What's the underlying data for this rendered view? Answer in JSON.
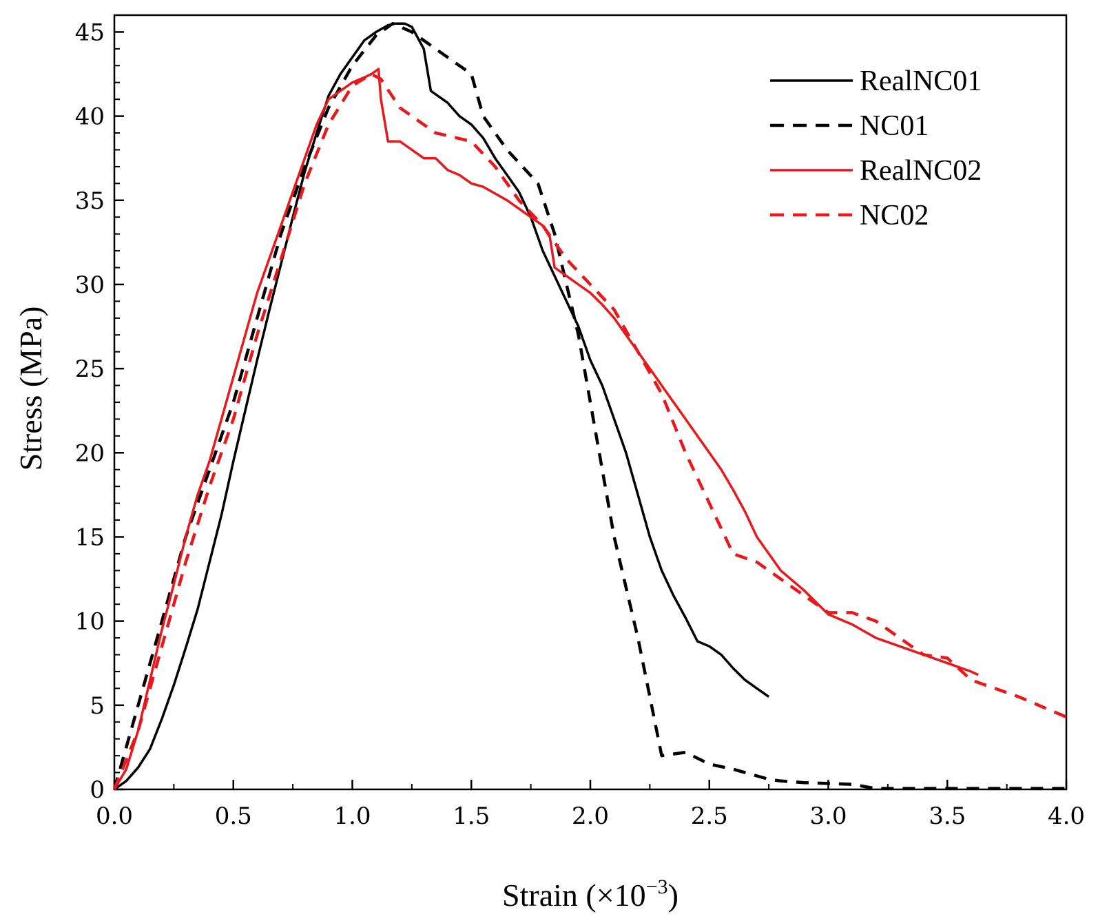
{
  "chart_data": {
    "type": "line",
    "title": "",
    "xlabel": "Strain (×10",
    "xlabel_exponent": "−3",
    "xlabel_close": ")",
    "ylabel": "Stress (MPa)",
    "xlim": [
      0,
      4.0
    ],
    "ylim": [
      0,
      46
    ],
    "x_ticks": [
      "0.0",
      "0.5",
      "1.0",
      "1.5",
      "2.0",
      "2.5",
      "3.0",
      "3.5",
      "4.0"
    ],
    "x_tick_values": [
      0,
      0.5,
      1.0,
      1.5,
      2.0,
      2.5,
      3.0,
      3.5,
      4.0
    ],
    "y_ticks": [
      "0",
      "5",
      "10",
      "15",
      "20",
      "25",
      "30",
      "35",
      "40",
      "45"
    ],
    "y_tick_values": [
      0,
      5,
      10,
      15,
      20,
      25,
      30,
      35,
      40,
      45
    ],
    "grid": false,
    "legend_position": "top-right",
    "series": [
      {
        "name": "RealNC01",
        "color": "#000000",
        "style": "solid",
        "x": [
          0,
          0.05,
          0.1,
          0.15,
          0.2,
          0.25,
          0.3,
          0.35,
          0.4,
          0.45,
          0.5,
          0.55,
          0.6,
          0.65,
          0.7,
          0.75,
          0.8,
          0.85,
          0.9,
          0.95,
          1.0,
          1.05,
          1.1,
          1.15,
          1.18,
          1.22,
          1.25,
          1.3,
          1.33,
          1.4,
          1.45,
          1.5,
          1.55,
          1.6,
          1.65,
          1.7,
          1.75,
          1.8,
          1.85,
          1.9,
          1.95,
          2.0,
          2.05,
          2.1,
          2.15,
          2.2,
          2.25,
          2.3,
          2.35,
          2.4,
          2.45,
          2.5,
          2.55,
          2.6,
          2.65,
          2.7,
          2.75
        ],
        "y": [
          0,
          0.5,
          1.3,
          2.4,
          4.2,
          6.2,
          8.4,
          10.7,
          13.5,
          16.3,
          19.5,
          22.5,
          25.5,
          28.4,
          31.2,
          34.0,
          36.7,
          39.0,
          41.2,
          42.5,
          43.5,
          44.5,
          45.0,
          45.4,
          45.5,
          45.5,
          45.3,
          44.0,
          41.5,
          40.8,
          40.0,
          39.5,
          38.7,
          37.5,
          36.5,
          35.5,
          34.0,
          32.0,
          30.5,
          29.0,
          27.5,
          25.5,
          24.0,
          22.0,
          20.0,
          17.5,
          15.0,
          13.0,
          11.5,
          10.2,
          8.8,
          8.5,
          8.0,
          7.2,
          6.5,
          6.0,
          5.5
        ]
      },
      {
        "name": "NC01",
        "color": "#000000",
        "style": "dashed",
        "x": [
          0,
          0.1,
          0.2,
          0.3,
          0.4,
          0.5,
          0.6,
          0.7,
          0.8,
          0.9,
          1.0,
          1.1,
          1.17,
          1.25,
          1.35,
          1.5,
          1.55,
          1.65,
          1.78,
          1.85,
          1.9,
          1.95,
          2.0,
          2.05,
          2.1,
          2.15,
          2.2,
          2.25,
          2.3,
          2.4,
          2.5,
          2.6,
          2.75,
          2.8,
          2.9,
          3.1,
          3.2,
          3.5,
          4.0
        ],
        "y": [
          0,
          5.0,
          10.0,
          15.0,
          19.0,
          23.0,
          28.0,
          33.0,
          37.0,
          40.5,
          43.0,
          44.8,
          45.5,
          45.0,
          44.0,
          42.5,
          40.0,
          38.0,
          36.0,
          33.0,
          30.0,
          27.0,
          23.0,
          19.0,
          15.0,
          12.0,
          9.0,
          5.5,
          2.0,
          2.2,
          1.5,
          1.2,
          0.6,
          0.5,
          0.4,
          0.3,
          0.05,
          0.05,
          0.05
        ]
      },
      {
        "name": "RealNC02",
        "color": "#e8191d",
        "style": "solid",
        "x": [
          0,
          0.05,
          0.1,
          0.15,
          0.2,
          0.25,
          0.3,
          0.35,
          0.4,
          0.45,
          0.5,
          0.55,
          0.6,
          0.65,
          0.7,
          0.75,
          0.8,
          0.85,
          0.9,
          0.95,
          1.0,
          1.05,
          1.08,
          1.11,
          1.12,
          1.15,
          1.2,
          1.25,
          1.3,
          1.35,
          1.4,
          1.45,
          1.5,
          1.55,
          1.6,
          1.65,
          1.7,
          1.75,
          1.8,
          1.83,
          1.85,
          1.9,
          1.95,
          2.0,
          2.05,
          2.1,
          2.15,
          2.2,
          2.25,
          2.3,
          2.35,
          2.4,
          2.45,
          2.5,
          2.55,
          2.6,
          2.65,
          2.7,
          2.8,
          2.9,
          3.0,
          3.1,
          3.2,
          3.3,
          3.4,
          3.5,
          3.6,
          3.63
        ],
        "y": [
          0,
          1.2,
          3.5,
          6.5,
          9.5,
          12.2,
          15.0,
          17.5,
          19.5,
          22.0,
          24.5,
          27.0,
          29.5,
          31.5,
          33.5,
          35.5,
          37.5,
          39.5,
          41.0,
          41.5,
          42.0,
          42.3,
          42.5,
          42.8,
          41.0,
          38.5,
          38.5,
          38.0,
          37.5,
          37.5,
          36.8,
          36.5,
          36.0,
          35.8,
          35.4,
          35.0,
          34.5,
          34.0,
          33.5,
          32.8,
          31.0,
          30.5,
          30.0,
          29.5,
          28.8,
          28.0,
          27.0,
          26.0,
          25.0,
          24.0,
          23.0,
          22.0,
          21.0,
          20.0,
          19.0,
          17.8,
          16.5,
          15.0,
          13.0,
          11.8,
          10.4,
          9.8,
          9.0,
          8.5,
          8.0,
          7.5,
          7.0,
          6.8
        ]
      },
      {
        "name": "NC02",
        "color": "#e8191d",
        "style": "dashed",
        "x": [
          0,
          0.1,
          0.2,
          0.3,
          0.4,
          0.5,
          0.6,
          0.7,
          0.8,
          0.9,
          1.0,
          1.08,
          1.12,
          1.2,
          1.35,
          1.5,
          1.6,
          1.7,
          1.8,
          1.9,
          2.0,
          2.1,
          2.2,
          2.3,
          2.4,
          2.5,
          2.6,
          2.7,
          2.8,
          2.9,
          3.0,
          3.1,
          3.2,
          3.3,
          3.4,
          3.5,
          3.6,
          3.8,
          4.0
        ],
        "y": [
          0,
          3.5,
          8.5,
          13.5,
          18.0,
          22.0,
          27.0,
          31.5,
          36.0,
          39.5,
          41.8,
          42.5,
          42.2,
          40.5,
          39.0,
          38.5,
          37.0,
          35.0,
          33.5,
          31.5,
          30.0,
          28.5,
          26.0,
          23.5,
          20.0,
          17.0,
          14.0,
          13.5,
          12.5,
          11.5,
          10.5,
          10.5,
          10.0,
          9.0,
          8.0,
          7.8,
          6.5,
          5.5,
          4.3
        ]
      }
    ]
  }
}
